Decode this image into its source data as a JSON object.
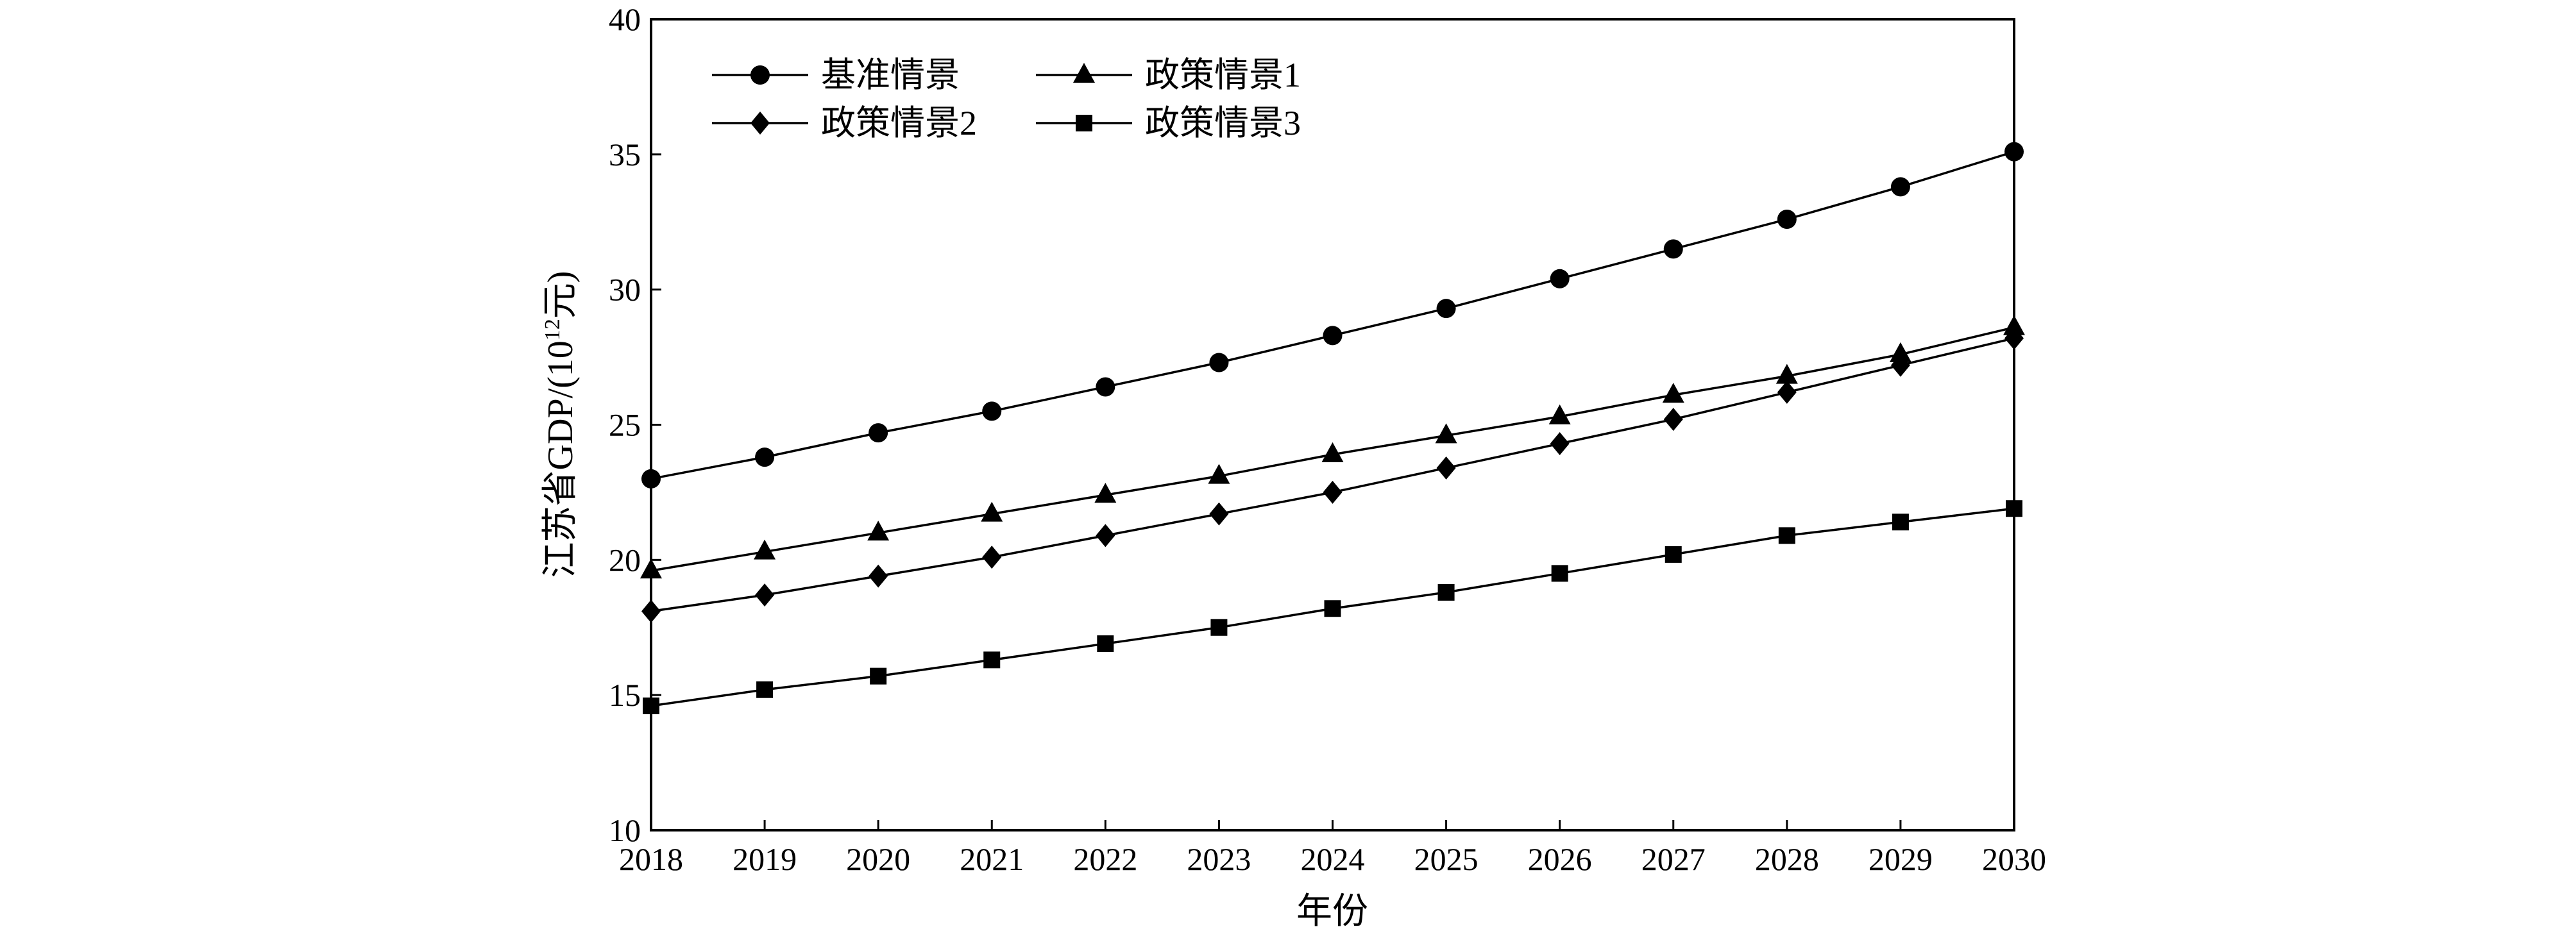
{
  "chart_data": {
    "type": "line",
    "xlabel": "年份",
    "ylabel": "江苏省GDP/(10¹²元)",
    "ylabel_parts": {
      "prefix": "江苏省GDP/(10",
      "superscript": "12",
      "suffix": "元)"
    },
    "x": [
      2018,
      2019,
      2020,
      2021,
      2022,
      2023,
      2024,
      2025,
      2026,
      2027,
      2028,
      2029,
      2030
    ],
    "xlim": [
      2018,
      2030
    ],
    "ylim": [
      10,
      40
    ],
    "yticks": [
      10,
      15,
      20,
      25,
      30,
      35,
      40
    ],
    "grid": false,
    "legend_position": "top-left",
    "series": [
      {
        "name": "基准情景",
        "marker": "circle",
        "values": [
          23.0,
          23.8,
          24.7,
          25.5,
          26.4,
          27.3,
          28.3,
          29.3,
          30.4,
          31.5,
          32.6,
          33.8,
          35.1
        ]
      },
      {
        "name": "政策情景1",
        "marker": "triangle",
        "values": [
          19.6,
          20.3,
          21.0,
          21.7,
          22.4,
          23.1,
          23.9,
          24.6,
          25.3,
          26.1,
          26.8,
          27.6,
          28.6
        ]
      },
      {
        "name": "政策情景2",
        "marker": "diamond",
        "values": [
          18.1,
          18.7,
          19.4,
          20.1,
          20.9,
          21.7,
          22.5,
          23.4,
          24.3,
          25.2,
          26.2,
          27.2,
          28.2
        ]
      },
      {
        "name": "政策情景3",
        "marker": "square",
        "values": [
          14.6,
          15.2,
          15.7,
          16.3,
          16.9,
          17.5,
          18.2,
          18.8,
          19.5,
          20.2,
          20.9,
          21.4,
          21.9
        ]
      }
    ]
  }
}
